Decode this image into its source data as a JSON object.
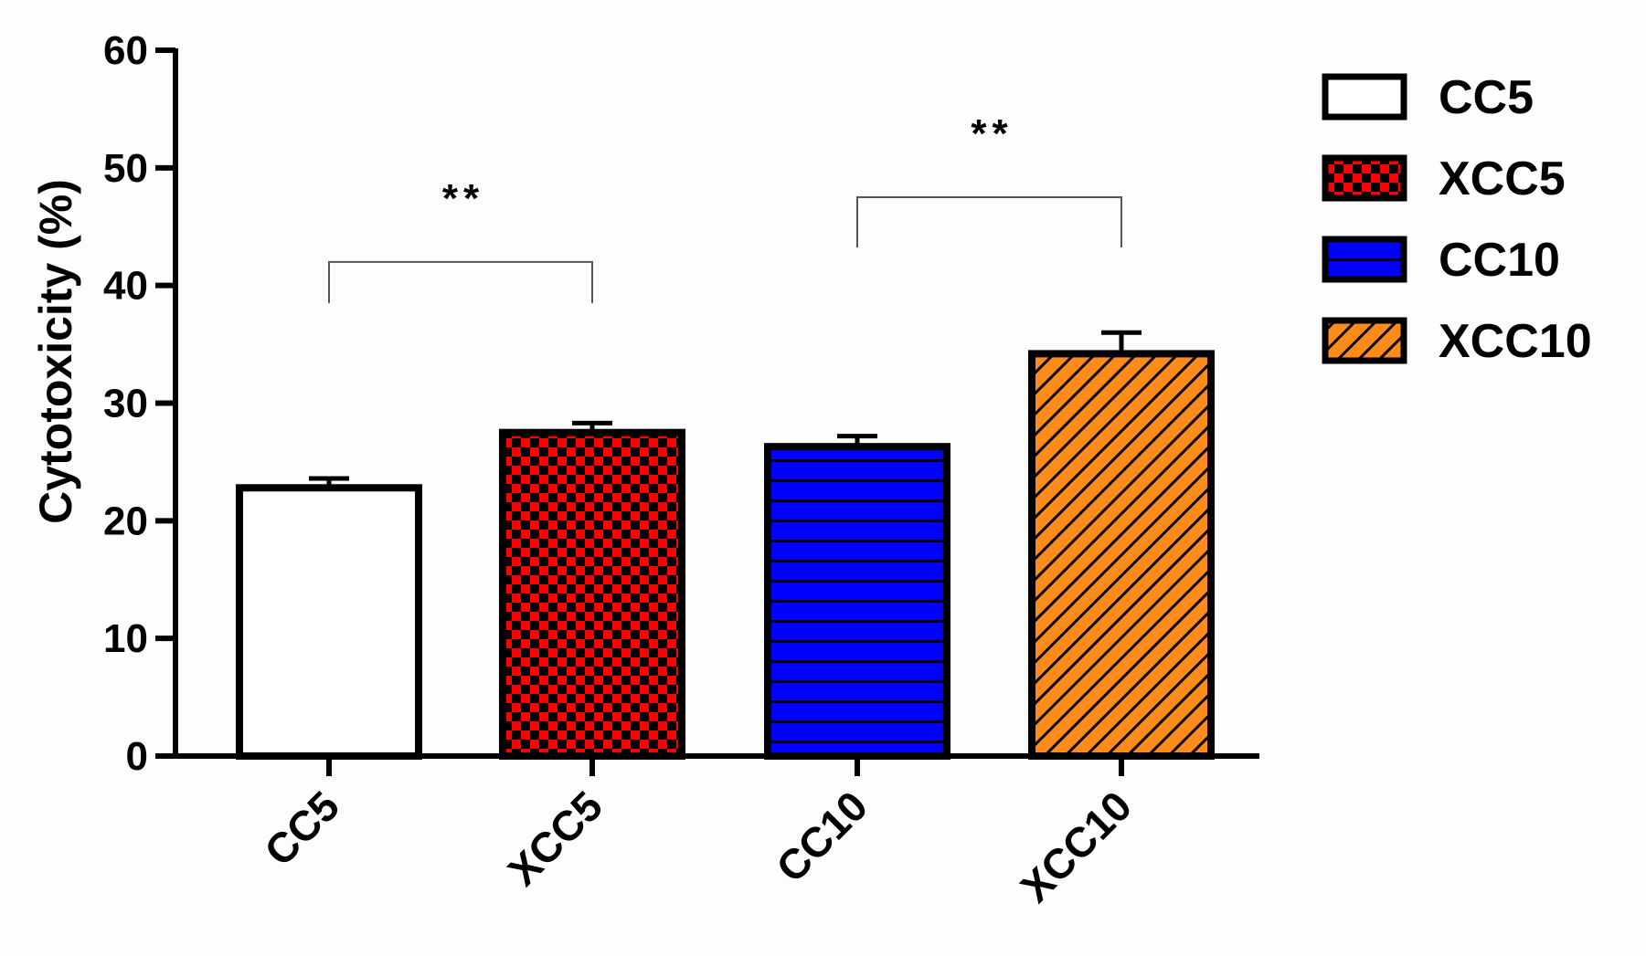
{
  "chart_data": {
    "type": "bar",
    "title": "",
    "xlabel": "",
    "ylabel": "Cytotoxicity (%)",
    "ylim": [
      0,
      60
    ],
    "yticks": [
      0,
      10,
      20,
      30,
      40,
      50,
      60
    ],
    "categories": [
      "CC5",
      "XCC5",
      "CC10",
      "XCC10"
    ],
    "values": [
      22.8,
      27.5,
      26.3,
      34.2
    ],
    "errors": [
      0.8,
      0.8,
      0.9,
      1.8
    ],
    "bar_styles": [
      {
        "fill": "#ffffff",
        "pattern": "none"
      },
      {
        "fill": "#ff0000",
        "pattern": "checker"
      },
      {
        "fill": "#0000ff",
        "pattern": "horizontal"
      },
      {
        "fill": "#ff8c1a",
        "pattern": "diagonal"
      }
    ],
    "legend": {
      "position": "top-right",
      "entries": [
        "CC5",
        "XCC5",
        "CC10",
        "XCC10"
      ]
    },
    "significance": [
      {
        "from": 0,
        "to": 1,
        "label": "**",
        "y": 42
      },
      {
        "from": 2,
        "to": 3,
        "label": "**",
        "y": 47.5
      }
    ]
  }
}
